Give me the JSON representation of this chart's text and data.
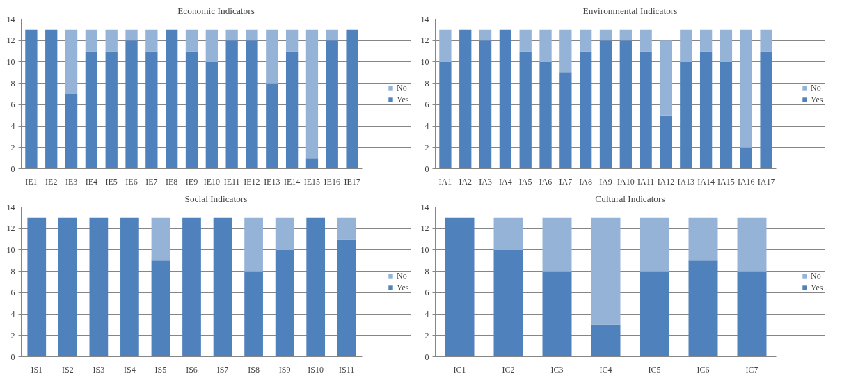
{
  "chart_data": [
    {
      "type": "bar",
      "title": "Economic Indicators",
      "stacked": true,
      "categories": [
        "IE1",
        "IE2",
        "IE3",
        "IE4",
        "IE5",
        "IE6",
        "IE7",
        "IE8",
        "IE9",
        "IE10",
        "IE11",
        "IE12",
        "IE13",
        "IE14",
        "IE15",
        "IE16",
        "IE17"
      ],
      "series": [
        {
          "name": "Yes",
          "color": "#4f81bd",
          "values": [
            13,
            13,
            7,
            11,
            11,
            12,
            11,
            13,
            11,
            10,
            12,
            12,
            8,
            11,
            1,
            12,
            13
          ]
        },
        {
          "name": "No",
          "color": "#95b3d7",
          "values": [
            0,
            0,
            6,
            2,
            2,
            1,
            2,
            0,
            2,
            3,
            1,
            1,
            5,
            2,
            12,
            1,
            0
          ]
        }
      ],
      "ylim": [
        0,
        14
      ],
      "yticks": [
        0,
        2,
        4,
        6,
        8,
        10,
        12,
        14
      ],
      "grid": "y",
      "legend": "right"
    },
    {
      "type": "bar",
      "title": "Environmental Indicators",
      "stacked": true,
      "categories": [
        "IA1",
        "IA2",
        "IA3",
        "IA4",
        "IA5",
        "IA6",
        "IA7",
        "IA8",
        "IA9",
        "IA10",
        "IA11",
        "IA12",
        "IA13",
        "IA14",
        "IA15",
        "IA16",
        "IA17"
      ],
      "series": [
        {
          "name": "Yes",
          "color": "#4f81bd",
          "values": [
            10,
            13,
            12,
            13,
            11,
            10,
            9,
            11,
            12,
            12,
            11,
            5,
            10,
            11,
            10,
            2,
            11
          ]
        },
        {
          "name": "No",
          "color": "#95b3d7",
          "values": [
            3,
            0,
            1,
            0,
            2,
            3,
            4,
            2,
            1,
            1,
            2,
            7,
            3,
            2,
            3,
            11,
            2
          ]
        }
      ],
      "ylim": [
        0,
        14
      ],
      "yticks": [
        0,
        2,
        4,
        6,
        8,
        10,
        12,
        14
      ],
      "grid": "y",
      "legend": "right"
    },
    {
      "type": "bar",
      "title": "Social Indicators",
      "stacked": true,
      "categories": [
        "IS1",
        "IS2",
        "IS3",
        "IS4",
        "IS5",
        "IS6",
        "IS7",
        "IS8",
        "IS9",
        "IS10",
        "IS11"
      ],
      "series": [
        {
          "name": "Yes",
          "color": "#4f81bd",
          "values": [
            13,
            13,
            13,
            13,
            9,
            13,
            13,
            8,
            10,
            13,
            11
          ]
        },
        {
          "name": "No",
          "color": "#95b3d7",
          "values": [
            0,
            0,
            0,
            0,
            4,
            0,
            0,
            5,
            3,
            0,
            2
          ]
        }
      ],
      "ylim": [
        0,
        14
      ],
      "yticks": [
        0,
        2,
        4,
        6,
        8,
        10,
        12,
        14
      ],
      "grid": "y",
      "legend": "right"
    },
    {
      "type": "bar",
      "title": "Cultural Indicators",
      "stacked": true,
      "categories": [
        "IC1",
        "IC2",
        "IC3",
        "IC4",
        "IC5",
        "IC6",
        "IC7"
      ],
      "series": [
        {
          "name": "Yes",
          "color": "#4f81bd",
          "values": [
            13,
            10,
            8,
            3,
            8,
            9,
            8
          ]
        },
        {
          "name": "No",
          "color": "#95b3d7",
          "values": [
            0,
            3,
            5,
            10,
            5,
            4,
            5
          ]
        }
      ],
      "ylim": [
        0,
        14
      ],
      "yticks": [
        0,
        2,
        4,
        6,
        8,
        10,
        12,
        14
      ],
      "grid": "y",
      "legend": "right"
    }
  ]
}
